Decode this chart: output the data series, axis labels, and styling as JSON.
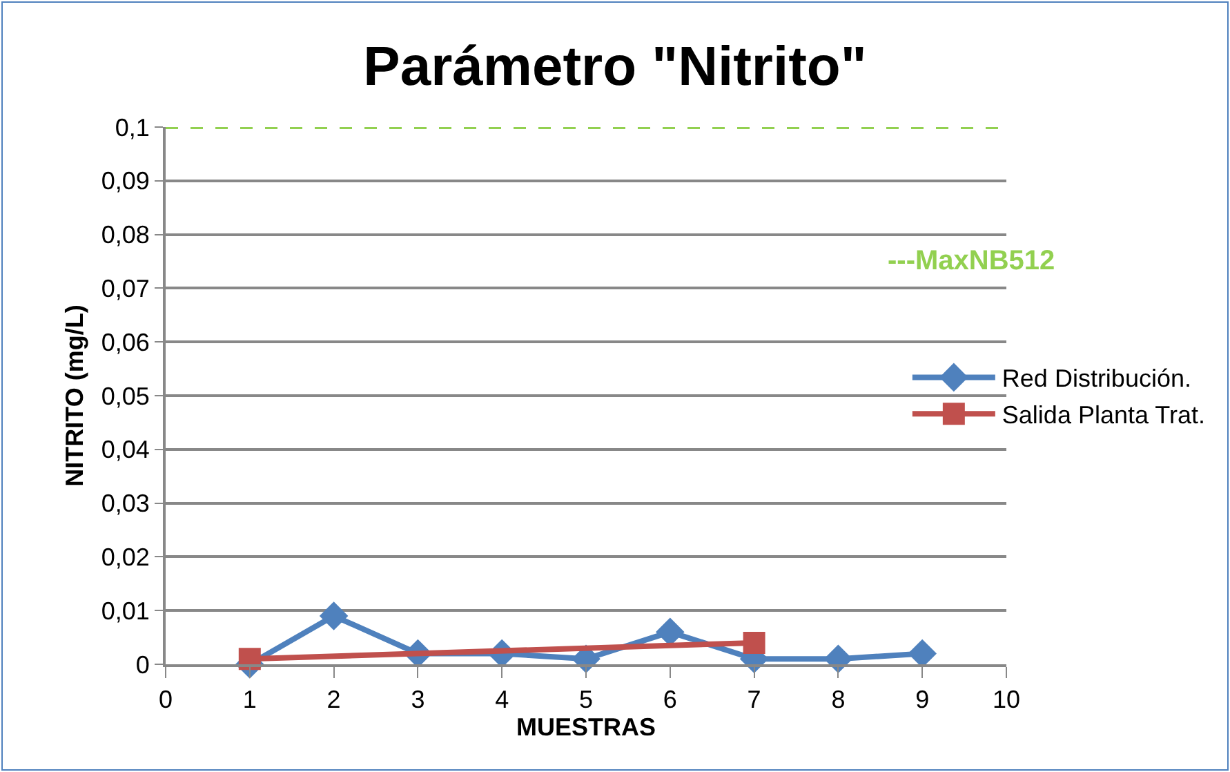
{
  "chart_data": {
    "type": "line",
    "title": "Parámetro \"Nitrito\"",
    "xlabel": "MUESTRAS",
    "ylabel": "NITRITO (mg/L)",
    "x": [
      1,
      2,
      3,
      4,
      5,
      6,
      7,
      8,
      9
    ],
    "series": [
      {
        "name": "Red Distribución.",
        "color": "#4f81bd",
        "marker": "diamond",
        "values": [
          0,
          0.009,
          0.002,
          0.002,
          0.001,
          0.006,
          0.001,
          0.001,
          0.002
        ]
      },
      {
        "name": "Salida Planta Trat.",
        "color": "#c0504d",
        "marker": "square",
        "x": [
          1,
          7
        ],
        "values": [
          0.001,
          0.004
        ]
      }
    ],
    "xlim": [
      0,
      10
    ],
    "xticks": [
      0,
      1,
      2,
      3,
      4,
      5,
      6,
      7,
      8,
      9,
      10
    ],
    "ylim": [
      0,
      0.1
    ],
    "yticks": [
      0,
      {
        "value": 0.01,
        "label": "0,01"
      },
      {
        "value": 0.02,
        "label": "0,02"
      },
      {
        "value": 0.03,
        "label": "0,03"
      },
      {
        "value": 0.04,
        "label": "0,04"
      },
      {
        "value": 0.05,
        "label": "0,05"
      },
      {
        "value": 0.06,
        "label": "0,06"
      },
      {
        "value": 0.07,
        "label": "0,07"
      },
      {
        "value": 0.08,
        "label": "0,08"
      },
      {
        "value": 0.09,
        "label": "0,09"
      },
      {
        "value": 0.1,
        "label": "0,1"
      }
    ],
    "ref_lines": [
      {
        "axis": "y",
        "value": 0.1,
        "label": "---MaxNB512",
        "color": "#92d050",
        "line_style": "dashed"
      }
    ],
    "grid": "y",
    "legend": "right",
    "line_style": "solid"
  }
}
